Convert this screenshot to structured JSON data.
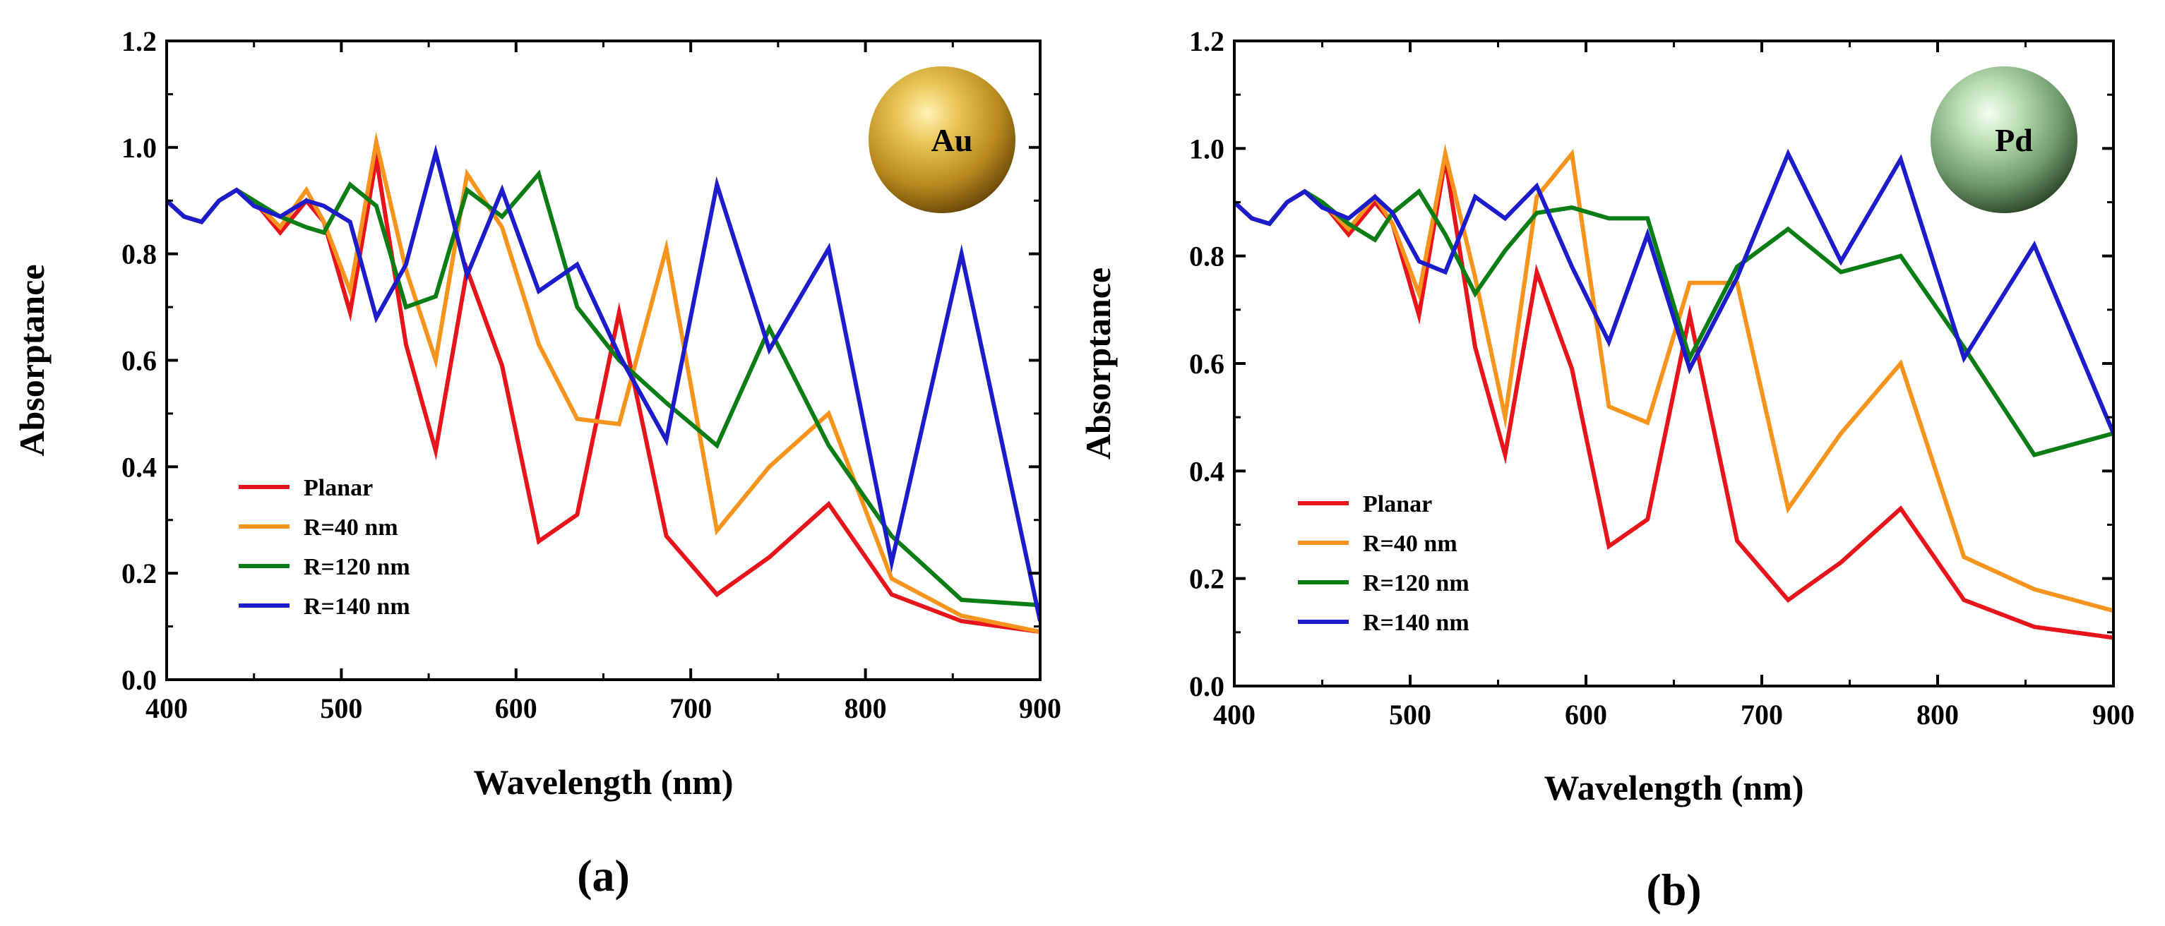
{
  "colors": {
    "Planar": "#e8141c",
    "R=40 nm": "#f7941d",
    "R=120 nm": "#0a7d14",
    "R=140 nm": "#1c1ccb"
  },
  "chart_data": [
    {
      "type": "line",
      "panel_label": "(a)",
      "badge": {
        "label": "Au",
        "icon": "gold-sphere-icon"
      },
      "xlabel": "Wavelength (nm)",
      "ylabel": "Absorptance",
      "xlim": [
        400,
        900
      ],
      "ylim": [
        0,
        1.2
      ],
      "xticks": [
        "400",
        "500",
        "600",
        "700",
        "800",
        "900"
      ],
      "yticks": [
        "0.0",
        "0.2",
        "0.4",
        "0.6",
        "0.8",
        "1.0",
        "1.2"
      ],
      "legend_position": "bottom-left",
      "series": [
        {
          "name": "Planar",
          "x": [
            400,
            410,
            420,
            430,
            440,
            450,
            465,
            480,
            490,
            505,
            520,
            537,
            554,
            572,
            592,
            613,
            635,
            659,
            686,
            715,
            745,
            779,
            815,
            855,
            900
          ],
          "y": [
            0.9,
            0.87,
            0.86,
            0.9,
            0.92,
            0.9,
            0.84,
            0.9,
            0.86,
            0.69,
            0.98,
            0.63,
            0.43,
            0.77,
            0.59,
            0.26,
            0.31,
            0.69,
            0.27,
            0.16,
            0.23,
            0.33,
            0.16,
            0.11,
            0.09
          ]
        },
        {
          "name": "R=40 nm",
          "x": [
            400,
            410,
            420,
            430,
            440,
            450,
            465,
            480,
            490,
            505,
            520,
            537,
            554,
            572,
            592,
            613,
            635,
            659,
            686,
            715,
            745,
            779,
            815,
            855,
            900
          ],
          "y": [
            0.9,
            0.87,
            0.86,
            0.9,
            0.92,
            0.9,
            0.85,
            0.92,
            0.86,
            0.73,
            1.01,
            0.77,
            0.6,
            0.95,
            0.85,
            0.63,
            0.49,
            0.48,
            0.81,
            0.28,
            0.4,
            0.5,
            0.19,
            0.12,
            0.09
          ]
        },
        {
          "name": "R=120 nm",
          "x": [
            400,
            410,
            420,
            430,
            440,
            450,
            465,
            480,
            490,
            505,
            520,
            537,
            554,
            572,
            592,
            613,
            635,
            659,
            686,
            715,
            745,
            779,
            815,
            855,
            900
          ],
          "y": [
            0.9,
            0.87,
            0.86,
            0.9,
            0.92,
            0.9,
            0.87,
            0.85,
            0.84,
            0.93,
            0.89,
            0.7,
            0.72,
            0.92,
            0.87,
            0.95,
            0.7,
            0.6,
            0.52,
            0.44,
            0.66,
            0.44,
            0.27,
            0.15,
            0.14
          ]
        },
        {
          "name": "R=140 nm",
          "x": [
            400,
            410,
            420,
            430,
            440,
            450,
            465,
            480,
            490,
            505,
            520,
            537,
            554,
            572,
            592,
            613,
            635,
            659,
            686,
            715,
            745,
            779,
            815,
            855,
            900
          ],
          "y": [
            0.9,
            0.87,
            0.86,
            0.9,
            0.92,
            0.89,
            0.87,
            0.9,
            0.89,
            0.86,
            0.68,
            0.78,
            0.99,
            0.76,
            0.92,
            0.73,
            0.78,
            0.61,
            0.45,
            0.93,
            0.62,
            0.81,
            0.22,
            0.8,
            0.11
          ]
        }
      ]
    },
    {
      "type": "line",
      "panel_label": "(b)",
      "badge": {
        "label": "Pd",
        "icon": "palladium-sphere-icon"
      },
      "xlabel": "Wavelength (nm)",
      "ylabel": "Absorptance",
      "xlim": [
        400,
        900
      ],
      "ylim": [
        0,
        1.2
      ],
      "xticks": [
        "400",
        "500",
        "600",
        "700",
        "800",
        "900"
      ],
      "yticks": [
        "0.0",
        "0.2",
        "0.4",
        "0.6",
        "0.8",
        "1.0",
        "1.2"
      ],
      "legend_position": "bottom-left",
      "series": [
        {
          "name": "Planar",
          "x": [
            400,
            410,
            420,
            430,
            440,
            450,
            465,
            480,
            490,
            505,
            520,
            537,
            554,
            572,
            592,
            613,
            635,
            659,
            686,
            715,
            745,
            779,
            815,
            855,
            900
          ],
          "y": [
            0.9,
            0.87,
            0.86,
            0.9,
            0.92,
            0.9,
            0.84,
            0.9,
            0.86,
            0.69,
            0.98,
            0.63,
            0.43,
            0.77,
            0.59,
            0.26,
            0.31,
            0.69,
            0.27,
            0.16,
            0.23,
            0.33,
            0.16,
            0.11,
            0.09
          ]
        },
        {
          "name": "R=40 nm",
          "x": [
            400,
            410,
            420,
            430,
            440,
            450,
            465,
            480,
            490,
            505,
            520,
            537,
            554,
            572,
            592,
            613,
            635,
            659,
            686,
            715,
            745,
            779,
            815,
            855,
            900
          ],
          "y": [
            0.9,
            0.87,
            0.86,
            0.9,
            0.92,
            0.9,
            0.85,
            0.91,
            0.86,
            0.73,
            0.99,
            0.76,
            0.5,
            0.91,
            0.99,
            0.52,
            0.49,
            0.75,
            0.75,
            0.33,
            0.47,
            0.6,
            0.24,
            0.18,
            0.14
          ]
        },
        {
          "name": "R=120 nm",
          "x": [
            400,
            410,
            420,
            430,
            440,
            450,
            465,
            480,
            490,
            505,
            520,
            537,
            554,
            572,
            592,
            613,
            635,
            659,
            686,
            715,
            745,
            779,
            815,
            855,
            900
          ],
          "y": [
            0.9,
            0.87,
            0.86,
            0.9,
            0.92,
            0.9,
            0.86,
            0.83,
            0.88,
            0.92,
            0.84,
            0.73,
            0.81,
            0.88,
            0.89,
            0.87,
            0.87,
            0.61,
            0.78,
            0.85,
            0.77,
            0.8,
            0.63,
            0.43,
            0.47
          ]
        },
        {
          "name": "R=140 nm",
          "x": [
            400,
            410,
            420,
            430,
            440,
            450,
            465,
            480,
            490,
            505,
            520,
            537,
            554,
            572,
            592,
            613,
            635,
            659,
            686,
            715,
            745,
            779,
            815,
            855,
            900
          ],
          "y": [
            0.9,
            0.87,
            0.86,
            0.9,
            0.92,
            0.89,
            0.87,
            0.91,
            0.88,
            0.79,
            0.77,
            0.91,
            0.87,
            0.93,
            0.78,
            0.64,
            0.84,
            0.59,
            0.76,
            0.99,
            0.79,
            0.98,
            0.61,
            0.82,
            0.47
          ]
        }
      ]
    }
  ]
}
